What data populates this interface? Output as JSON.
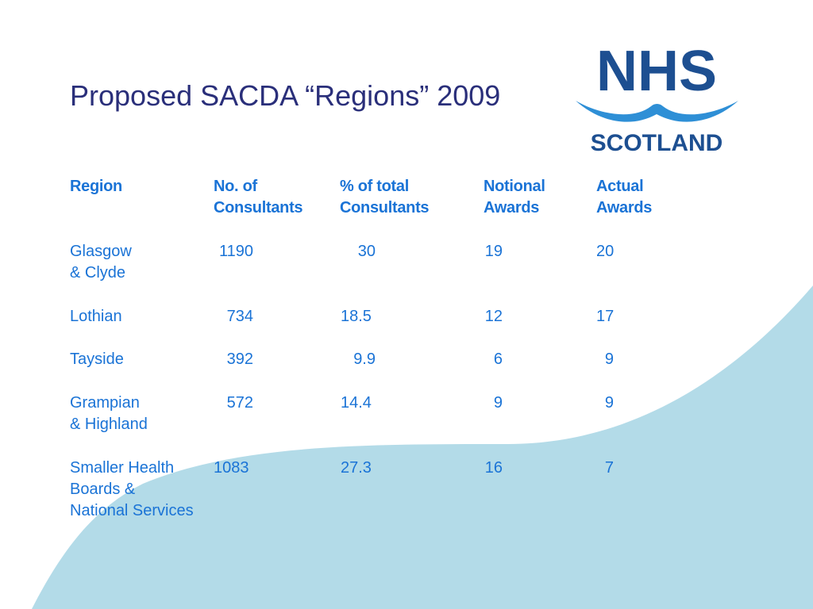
{
  "title": "Proposed SACDA “Regions” 2009",
  "logo": {
    "top_text": "NHS",
    "bottom_text": "SCOTLAND",
    "color": "#1d4f91",
    "wave_color": "#2e8fd6"
  },
  "colors": {
    "title": "#2a2f7a",
    "table_text": "#1a73d6",
    "background_wave": "#b3dbe8"
  },
  "table": {
    "headers": [
      "Region",
      "No. of\nConsultants",
      " % of total\nConsultants",
      "Notional\nAwards",
      "Actual\nAwards"
    ],
    "rows": [
      [
        "Glasgow\n& Clyde",
        "1190",
        "30",
        "19",
        "20"
      ],
      [
        "Lothian",
        "734",
        "18.5",
        "12",
        "17"
      ],
      [
        "Tayside",
        "392",
        "9.9",
        "6",
        "9"
      ],
      [
        "Grampian\n& Highland",
        "572",
        "14.4",
        "9",
        "9"
      ],
      [
        "Smaller Health\nBoards &\nNational Services",
        "1083",
        "27.3",
        "16",
        "7"
      ]
    ]
  }
}
